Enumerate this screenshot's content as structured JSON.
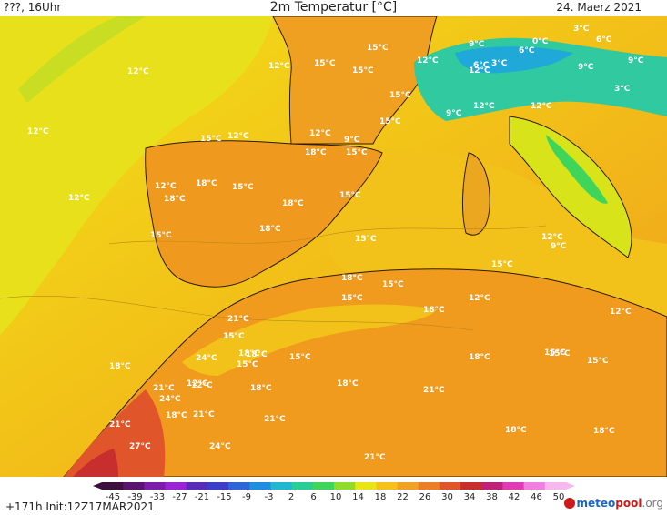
{
  "header": {
    "left": "???, 16Uhr",
    "title": "2m Temperatur [°C]",
    "date": "24. Maerz 2021"
  },
  "footer": {
    "run_info": "+171h Init:12Z17MAR2021",
    "brand_a": "meteo",
    "brand_b": "pool",
    "brand_c": ".org"
  },
  "legend": {
    "ticks": [
      "-45",
      "-39",
      "-33",
      "-27",
      "-21",
      "-15",
      "-9",
      "-3",
      "2",
      "6",
      "10",
      "14",
      "18",
      "22",
      "26",
      "30",
      "34",
      "38",
      "42",
      "46",
      "50"
    ],
    "colors": [
      "#3d0f3d",
      "#5a136e",
      "#7d1caa",
      "#9a24d6",
      "#5a2ab8",
      "#3a3ec8",
      "#2e66d8",
      "#1f8ee0",
      "#1fb8d0",
      "#27cf95",
      "#3fd45a",
      "#8fdc2a",
      "#e8e614",
      "#f5c21a",
      "#f0a322",
      "#ec7e26",
      "#e0562a",
      "#c82e2e",
      "#c02277",
      "#e23ab5",
      "#f07fe0",
      "#f7b8f0"
    ]
  },
  "map_labels": [
    "12°C",
    "15°C",
    "15°C",
    "12°C",
    "12°C",
    "12°C",
    "15°C",
    "12°C",
    "15°C",
    "9°C",
    "3°C",
    "6°C",
    "0°C",
    "6°C",
    "3°C",
    "9°C",
    "6°C",
    "9°C",
    "3°C",
    "15°C",
    "12°C",
    "9°C",
    "12°C",
    "15°C",
    "12°C",
    "18°C",
    "15°C",
    "12°C",
    "12°C",
    "9°C",
    "15°C",
    "12°C",
    "18°C",
    "18°C",
    "15°C",
    "18°C",
    "15°C",
    "18°C",
    "9°C",
    "12°C",
    "15°C",
    "15°C",
    "18°C",
    "15°C",
    "15°C",
    "18°C",
    "12°C",
    "21°C",
    "18°C",
    "12°C",
    "15°C",
    "18°C",
    "15°C",
    "15°C",
    "18°C",
    "24°C",
    "15°C",
    "18°C",
    "15°C",
    "15°C",
    "21°C",
    "24°C",
    "12°C",
    "18°C",
    "18°C",
    "21°C",
    "18°C",
    "21°C",
    "21°C",
    "21°C",
    "18°C",
    "18°C",
    "27°C",
    "24°C",
    "21°C",
    "12°C"
  ]
}
